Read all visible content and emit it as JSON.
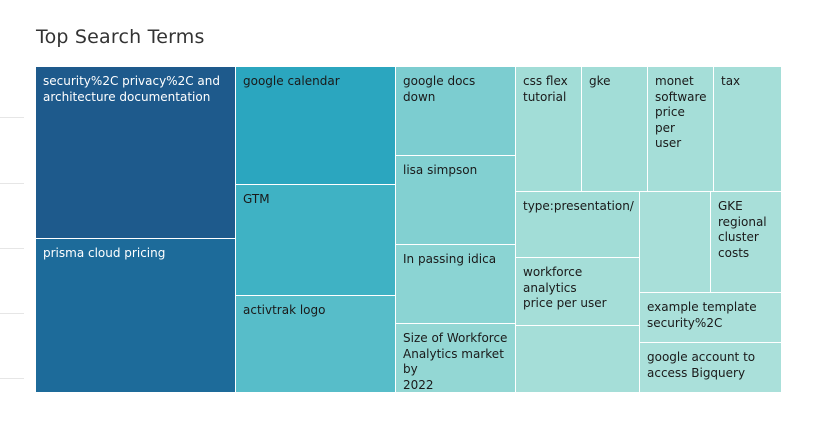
{
  "chart_data": {
    "type": "treemap",
    "title": "Top Search Terms",
    "tiles": [
      {
        "label": "security%2C privacy%2C and\narchitecture documentation",
        "value": 100
      },
      {
        "label": "prisma cloud pricing",
        "value": 86
      },
      {
        "label": "google calendar",
        "value": 49
      },
      {
        "label": "GTM",
        "value": 46
      },
      {
        "label": "activtrak logo",
        "value": 40
      },
      {
        "label": "google docs down",
        "value": 35
      },
      {
        "label": "lisa simpson",
        "value": 35
      },
      {
        "label": "In passing idica",
        "value": 31
      },
      {
        "label": "Size of Workforce\nAnalytics market by\n2022",
        "value": 28
      },
      {
        "label": "css flex\ntutorial",
        "value": 17
      },
      {
        "label": "gke",
        "value": 17
      },
      {
        "label": "monet\nsoftware\nprice per\nuser",
        "value": 17
      },
      {
        "label": "tax",
        "value": 17
      },
      {
        "label": "type:presentation/",
        "value": 16
      },
      {
        "label": "workforce analytics\nprice per user",
        "value": 16
      },
      {
        "label": "",
        "value": 16
      },
      {
        "label": "",
        "value": 13
      },
      {
        "label": "GKE\nregional\ncluster\ncosts",
        "value": 13
      },
      {
        "label": "example template\nsecurity%2C",
        "value": 13
      },
      {
        "label": "google account to\naccess Bigquery",
        "value": 13
      }
    ]
  }
}
